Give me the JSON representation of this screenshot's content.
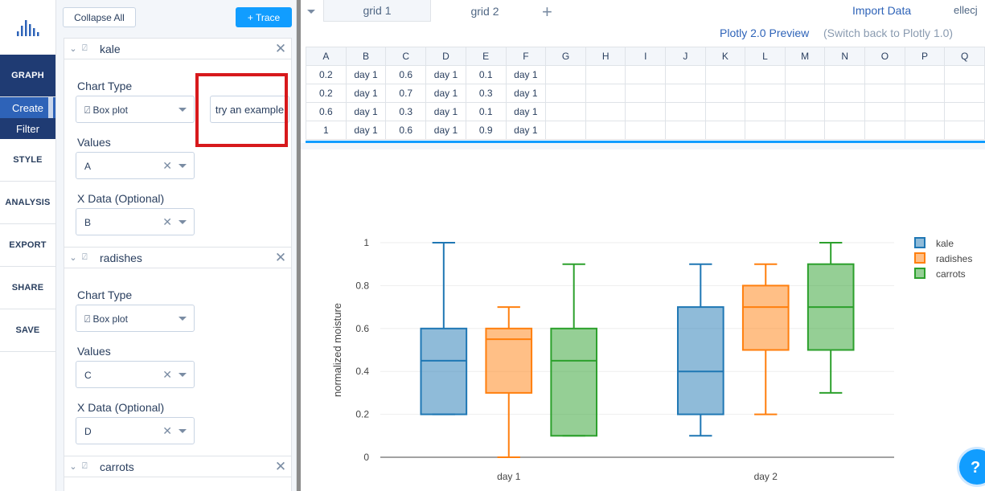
{
  "nav": {
    "graph": "GRAPH",
    "create": "Create",
    "filter": "Filter",
    "style": "STYLE",
    "analysis": "ANALYSIS",
    "export": "EXPORT",
    "share": "SHARE",
    "save": "SAVE"
  },
  "panel": {
    "collapse_all": "Collapse All",
    "add_trace": "+ Trace",
    "try_example": "try an example",
    "traces": [
      {
        "name": "kale",
        "chart_type_label": "Chart Type",
        "chart_type": "Box plot",
        "values_label": "Values",
        "values": "A",
        "x_label": "X Data (Optional)",
        "x": "B"
      },
      {
        "name": "radishes",
        "chart_type_label": "Chart Type",
        "chart_type": "Box plot",
        "values_label": "Values",
        "values": "C",
        "x_label": "X Data (Optional)",
        "x": "D"
      },
      {
        "name": "carrots"
      }
    ]
  },
  "topbar": {
    "tabs": [
      "grid 1",
      "grid 2"
    ],
    "import": "Import Data",
    "user": "ellecj",
    "preview": "Plotly 2.0 Preview",
    "switch": "(Switch back to Plotly 1.0)"
  },
  "grid": {
    "columns": [
      "A",
      "B",
      "C",
      "D",
      "E",
      "F",
      "G",
      "H",
      "I",
      "J",
      "K",
      "L",
      "M",
      "N",
      "O",
      "P",
      "Q"
    ],
    "rows": [
      [
        "0.2",
        "day 1",
        "0.6",
        "day 1",
        "0.1",
        "day 1"
      ],
      [
        "0.2",
        "day 1",
        "0.7",
        "day 1",
        "0.3",
        "day 1"
      ],
      [
        "0.6",
        "day 1",
        "0.3",
        "day 1",
        "0.1",
        "day 1"
      ],
      [
        "1",
        "day 1",
        "0.6",
        "day 1",
        "0.9",
        "day 1"
      ]
    ]
  },
  "chart_data": {
    "type": "box",
    "ylabel": "normalized moisture",
    "ylim": [
      0,
      1
    ],
    "yticks": [
      "0",
      "0.2",
      "0.4",
      "0.6",
      "0.8",
      "1"
    ],
    "categories": [
      "day 1",
      "day 2"
    ],
    "legend_placement": "top-right",
    "series": [
      {
        "name": "kale",
        "color": "#1f77b4",
        "boxes": [
          {
            "min": 0.2,
            "q1": 0.2,
            "median": 0.45,
            "q3": 0.6,
            "max": 1.0
          },
          {
            "min": 0.1,
            "q1": 0.2,
            "median": 0.4,
            "q3": 0.7,
            "max": 0.9
          }
        ]
      },
      {
        "name": "radishes",
        "color": "#ff7f0e",
        "boxes": [
          {
            "min": 0.0,
            "q1": 0.3,
            "median": 0.55,
            "q3": 0.6,
            "max": 0.7
          },
          {
            "min": 0.2,
            "q1": 0.5,
            "median": 0.7,
            "q3": 0.8,
            "max": 0.9
          }
        ]
      },
      {
        "name": "carrots",
        "color": "#2ca02c",
        "boxes": [
          {
            "min": 0.1,
            "q1": 0.1,
            "median": 0.45,
            "q3": 0.6,
            "max": 0.9
          },
          {
            "min": 0.3,
            "q1": 0.5,
            "median": 0.7,
            "q3": 0.9,
            "max": 1.0
          }
        ]
      }
    ]
  },
  "help_icon": "?"
}
